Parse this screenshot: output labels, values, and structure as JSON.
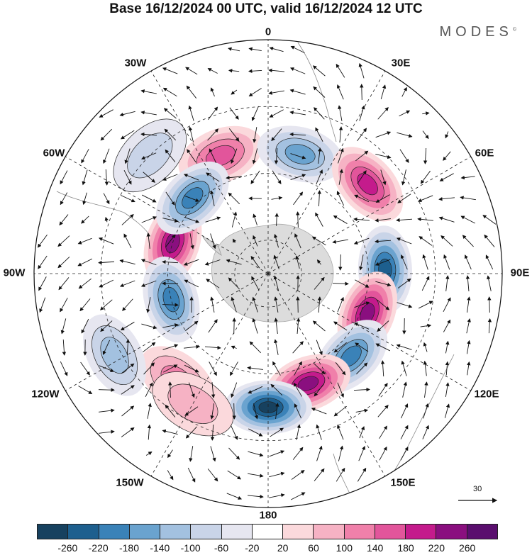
{
  "title": "Base 16/12/2024 00 UTC, valid 16/12/2024 12 UTC",
  "brand": "MODES",
  "brand_mark": "©",
  "longitude_labels": {
    "top": "0",
    "ne": "30E",
    "e60": "60E",
    "e90": "90E",
    "e120": "120E",
    "e150": "150E",
    "bottom": "180",
    "w150": "150W",
    "w120": "120W",
    "w90": "90W",
    "w60": "60W",
    "w30": "30W"
  },
  "reference_vector": {
    "label": "30"
  },
  "colorbar": {
    "colors": [
      "#17415f",
      "#1d5f8e",
      "#3a82b8",
      "#6aa3cf",
      "#a3c1e0",
      "#c9d4e8",
      "#e6e6f0",
      "#ffffff",
      "#fbd9dc",
      "#f6b2c4",
      "#f080aa",
      "#e2559b",
      "#c41b8c",
      "#8a0f7f",
      "#5a0e6e"
    ],
    "ticks": [
      "-260",
      "-220",
      "-180",
      "-140",
      "-100",
      "-60",
      "-20",
      "20",
      "60",
      "100",
      "140",
      "180",
      "220",
      "260"
    ]
  },
  "map_data": {
    "projection": "south-polar-stereographic",
    "field": "geopotential height anomaly",
    "anomalies": [
      {
        "lon": -22,
        "lat": -52,
        "value": 140
      },
      {
        "lon": 15,
        "lat": -53,
        "value": -140
      },
      {
        "lon": 48,
        "lat": -50,
        "value": 180
      },
      {
        "lon": 88,
        "lat": -55,
        "value": -220
      },
      {
        "lon": 112,
        "lat": -58,
        "value": 220
      },
      {
        "lon": 135,
        "lat": -55,
        "value": -180
      },
      {
        "lon": 160,
        "lat": -55,
        "value": 220
      },
      {
        "lon": 180,
        "lat": -50,
        "value": -260
      },
      {
        "lon": -72,
        "lat": -60,
        "value": 220
      },
      {
        "lon": -105,
        "lat": -60,
        "value": -180
      },
      {
        "lon": -45,
        "lat": -58,
        "value": -180
      },
      {
        "lon": -45,
        "lat": -40,
        "value": -60
      },
      {
        "lon": -140,
        "lat": -48,
        "value": 100
      },
      {
        "lon": -118,
        "lat": -38,
        "value": -100
      },
      {
        "lon": -150,
        "lat": -45,
        "value": 60
      }
    ]
  }
}
